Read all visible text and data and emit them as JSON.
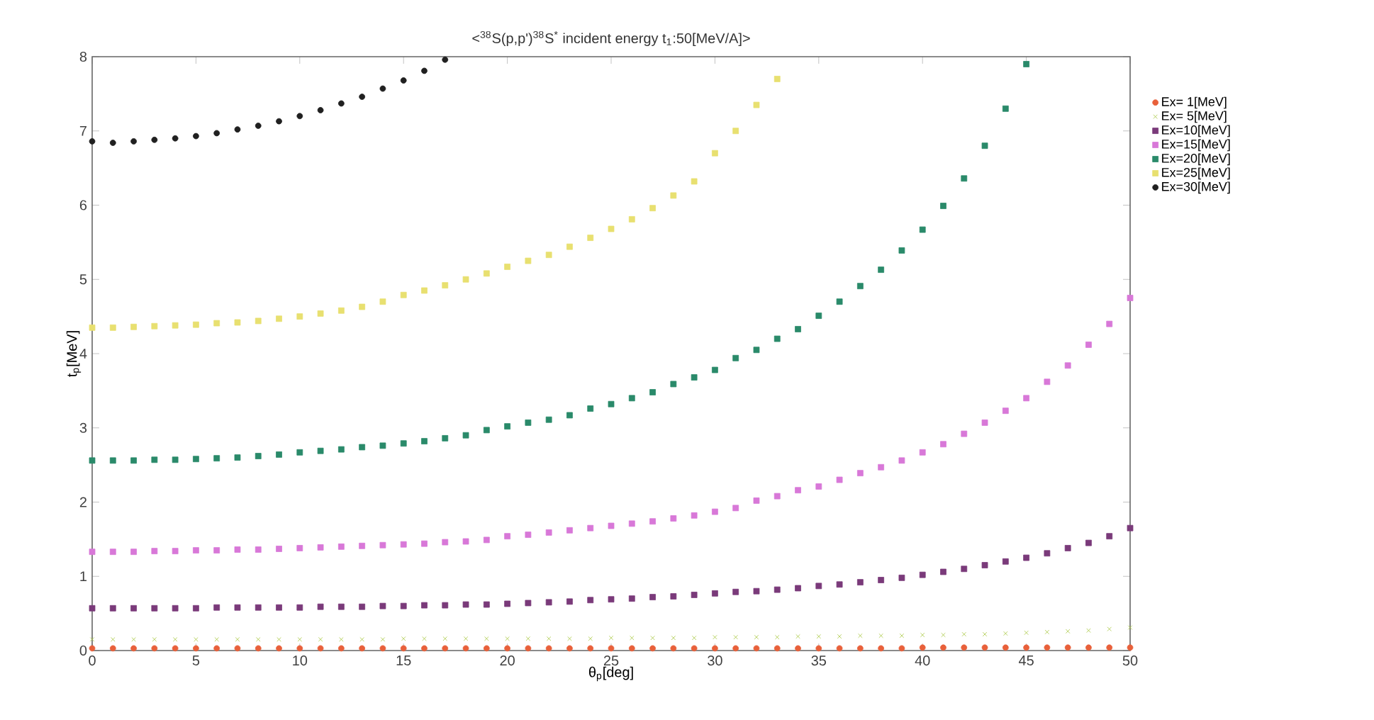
{
  "chart_data": {
    "type": "scatter",
    "title": "<$^{38}$S(p,p')$^{38}$S$^{*}$  incident energy t$_{1}$:50[MeV/A]>",
    "xlabel": "θ$_{p}$[deg]",
    "ylabel": "t$_{p}$[MeV]",
    "xlim": [
      0,
      50
    ],
    "ylim": [
      0,
      8
    ],
    "xticks": [
      0,
      5,
      10,
      15,
      20,
      25,
      30,
      35,
      40,
      45,
      50
    ],
    "yticks": [
      0,
      1,
      2,
      3,
      4,
      5,
      6,
      7,
      8
    ],
    "grid": false,
    "legend": "top right",
    "series": [
      {
        "name": "Ex= 1[MeV]",
        "color": "#e8603a",
        "marker": "circle",
        "x": [
          0,
          1,
          2,
          3,
          4,
          5,
          6,
          7,
          8,
          9,
          10,
          11,
          12,
          13,
          14,
          15,
          16,
          17,
          18,
          19,
          20,
          21,
          22,
          23,
          24,
          25,
          26,
          27,
          28,
          29,
          30,
          31,
          32,
          33,
          34,
          35,
          36,
          37,
          38,
          39,
          40,
          41,
          42,
          43,
          44,
          45,
          46,
          47,
          48,
          49,
          50
        ],
        "values": [
          0.03,
          0.03,
          0.03,
          0.03,
          0.03,
          0.03,
          0.03,
          0.03,
          0.03,
          0.03,
          0.03,
          0.03,
          0.03,
          0.03,
          0.03,
          0.03,
          0.03,
          0.03,
          0.03,
          0.03,
          0.03,
          0.03,
          0.03,
          0.03,
          0.03,
          0.03,
          0.03,
          0.03,
          0.03,
          0.03,
          0.03,
          0.03,
          0.03,
          0.03,
          0.03,
          0.03,
          0.03,
          0.03,
          0.03,
          0.03,
          0.04,
          0.04,
          0.04,
          0.04,
          0.04,
          0.04,
          0.04,
          0.04,
          0.04,
          0.04,
          0.04
        ]
      },
      {
        "name": "Ex= 5[MeV]",
        "color": "#a8c840",
        "marker": "cross",
        "x": [
          0,
          1,
          2,
          3,
          4,
          5,
          6,
          7,
          8,
          9,
          10,
          11,
          12,
          13,
          14,
          15,
          16,
          17,
          18,
          19,
          20,
          21,
          22,
          23,
          24,
          25,
          26,
          27,
          28,
          29,
          30,
          31,
          32,
          33,
          34,
          35,
          36,
          37,
          38,
          39,
          40,
          41,
          42,
          43,
          44,
          45,
          46,
          47,
          48,
          49,
          50
        ],
        "values": [
          0.15,
          0.15,
          0.15,
          0.15,
          0.15,
          0.15,
          0.15,
          0.15,
          0.15,
          0.15,
          0.15,
          0.15,
          0.15,
          0.15,
          0.15,
          0.16,
          0.16,
          0.16,
          0.16,
          0.16,
          0.16,
          0.16,
          0.16,
          0.16,
          0.16,
          0.17,
          0.17,
          0.17,
          0.17,
          0.17,
          0.18,
          0.18,
          0.18,
          0.18,
          0.19,
          0.19,
          0.19,
          0.2,
          0.2,
          0.2,
          0.21,
          0.21,
          0.22,
          0.22,
          0.23,
          0.24,
          0.25,
          0.26,
          0.27,
          0.29,
          0.31
        ]
      },
      {
        "name": "Ex=10[MeV]",
        "color": "#7a3a7a",
        "marker": "square",
        "x": [
          0,
          1,
          2,
          3,
          4,
          5,
          6,
          7,
          8,
          9,
          10,
          11,
          12,
          13,
          14,
          15,
          16,
          17,
          18,
          19,
          20,
          21,
          22,
          23,
          24,
          25,
          26,
          27,
          28,
          29,
          30,
          31,
          32,
          33,
          34,
          35,
          36,
          37,
          38,
          39,
          40,
          41,
          42,
          43,
          44,
          45,
          46,
          47,
          48,
          49,
          50
        ],
        "values": [
          0.57,
          0.57,
          0.57,
          0.57,
          0.57,
          0.57,
          0.58,
          0.58,
          0.58,
          0.58,
          0.58,
          0.59,
          0.59,
          0.59,
          0.6,
          0.6,
          0.61,
          0.61,
          0.62,
          0.62,
          0.63,
          0.64,
          0.65,
          0.66,
          0.68,
          0.69,
          0.7,
          0.72,
          0.73,
          0.75,
          0.77,
          0.79,
          0.8,
          0.82,
          0.84,
          0.87,
          0.89,
          0.92,
          0.95,
          0.98,
          1.02,
          1.06,
          1.1,
          1.15,
          1.2,
          1.25,
          1.31,
          1.38,
          1.45,
          1.54,
          1.65
        ]
      },
      {
        "name": "Ex=15[MeV]",
        "color": "#d878d8",
        "marker": "square",
        "x": [
          0,
          1,
          2,
          3,
          4,
          5,
          6,
          7,
          8,
          9,
          10,
          11,
          12,
          13,
          14,
          15,
          16,
          17,
          18,
          19,
          20,
          21,
          22,
          23,
          24,
          25,
          26,
          27,
          28,
          29,
          30,
          31,
          32,
          33,
          34,
          35,
          36,
          37,
          38,
          39,
          40,
          41,
          42,
          43,
          44,
          45,
          46,
          47,
          48,
          49,
          50
        ],
        "values": [
          1.33,
          1.33,
          1.33,
          1.34,
          1.34,
          1.35,
          1.35,
          1.36,
          1.36,
          1.37,
          1.38,
          1.39,
          1.4,
          1.41,
          1.42,
          1.43,
          1.44,
          1.46,
          1.47,
          1.49,
          1.54,
          1.56,
          1.59,
          1.62,
          1.65,
          1.68,
          1.71,
          1.74,
          1.78,
          1.82,
          1.87,
          1.92,
          2.02,
          2.08,
          2.16,
          2.21,
          2.3,
          2.39,
          2.47,
          2.56,
          2.67,
          2.78,
          2.92,
          3.07,
          3.23,
          3.4,
          3.62,
          3.84,
          4.12,
          4.4,
          4.75
        ]
      },
      {
        "name": "Ex=20[MeV]",
        "color": "#2a8a6a",
        "marker": "square",
        "x": [
          0,
          1,
          2,
          3,
          4,
          5,
          6,
          7,
          8,
          9,
          10,
          11,
          12,
          13,
          14,
          15,
          16,
          17,
          18,
          19,
          20,
          21,
          22,
          23,
          24,
          25,
          26,
          27,
          28,
          29,
          30,
          31,
          32,
          33,
          34,
          35,
          36,
          37,
          38,
          39,
          40,
          41,
          42,
          43,
          44,
          45
        ],
        "values": [
          2.56,
          2.56,
          2.56,
          2.57,
          2.57,
          2.58,
          2.59,
          2.6,
          2.62,
          2.64,
          2.67,
          2.69,
          2.71,
          2.74,
          2.76,
          2.79,
          2.82,
          2.86,
          2.9,
          2.97,
          3.02,
          3.07,
          3.11,
          3.17,
          3.26,
          3.32,
          3.4,
          3.48,
          3.59,
          3.68,
          3.78,
          3.94,
          4.05,
          4.2,
          4.33,
          4.51,
          4.7,
          4.91,
          5.13,
          5.39,
          5.67,
          5.99,
          6.36,
          6.8,
          7.3,
          7.9
        ]
      },
      {
        "name": "Ex=25[MeV]",
        "color": "#e8e070",
        "marker": "square",
        "x": [
          0,
          1,
          2,
          3,
          4,
          5,
          6,
          7,
          8,
          9,
          10,
          11,
          12,
          13,
          14,
          15,
          16,
          17,
          18,
          19,
          20,
          21,
          22,
          23,
          24,
          25,
          26,
          27,
          28,
          29,
          30,
          31,
          32,
          33
        ],
        "values": [
          4.35,
          4.35,
          4.36,
          4.37,
          4.38,
          4.39,
          4.41,
          4.42,
          4.44,
          4.47,
          4.5,
          4.54,
          4.58,
          4.63,
          4.7,
          4.79,
          4.85,
          4.92,
          5.0,
          5.08,
          5.17,
          5.25,
          5.33,
          5.44,
          5.56,
          5.68,
          5.81,
          5.96,
          6.13,
          6.32,
          6.7,
          7.0,
          7.35,
          7.7
        ]
      },
      {
        "name": "Ex=30[MeV]",
        "color": "#202020",
        "marker": "circle",
        "x": [
          0,
          1,
          2,
          3,
          4,
          5,
          6,
          7,
          8,
          9,
          10,
          11,
          12,
          13,
          14,
          15,
          16,
          17
        ],
        "values": [
          6.86,
          6.84,
          6.86,
          6.88,
          6.9,
          6.93,
          6.97,
          7.02,
          7.07,
          7.13,
          7.2,
          7.28,
          7.37,
          7.46,
          7.57,
          7.68,
          7.81,
          7.96
        ]
      }
    ]
  }
}
